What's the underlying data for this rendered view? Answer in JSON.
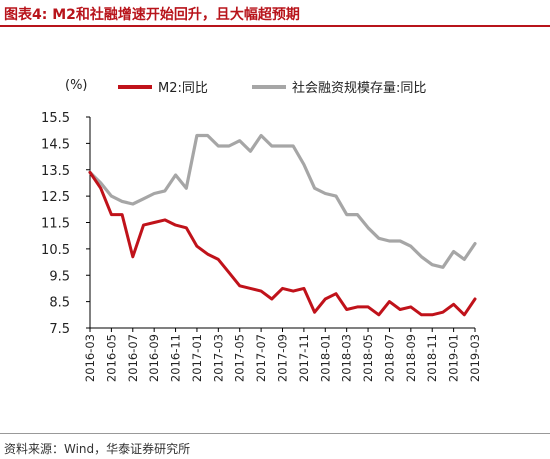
{
  "figure": {
    "title": "图表4:  M2和社融增速开始回升，且大幅超预期",
    "unit": "(%)",
    "source": "资料来源：Wind，华泰证券研究所"
  },
  "colors": {
    "accent": "#b8141b",
    "m2": "#c0121a",
    "tsf": "#a6a6a6",
    "axis": "#000000"
  },
  "chart_data": {
    "type": "line",
    "title": "",
    "xlabel": "",
    "ylabel": "(%)",
    "ylim": [
      7.5,
      15.5
    ],
    "yticks": [
      "15.5",
      "14.5",
      "13.5",
      "12.5",
      "11.5",
      "10.5",
      "9.5",
      "8.5",
      "7.5"
    ],
    "ytick_values": [
      15.5,
      14.5,
      13.5,
      12.5,
      11.5,
      10.5,
      9.5,
      8.5,
      7.5
    ],
    "xtick_labels": [
      "2016-03",
      "2016-05",
      "2016-07",
      "2016-09",
      "2016-11",
      "2017-01",
      "2017-03",
      "2017-05",
      "2017-07",
      "2017-09",
      "2017-11",
      "2018-01",
      "2018-03",
      "2018-05",
      "2018-07",
      "2018-09",
      "2018-11",
      "2019-01",
      "2019-03"
    ],
    "categories": [
      "2016-03",
      "2016-04",
      "2016-05",
      "2016-06",
      "2016-07",
      "2016-08",
      "2016-09",
      "2016-10",
      "2016-11",
      "2016-12",
      "2017-01",
      "2017-02",
      "2017-03",
      "2017-04",
      "2017-05",
      "2017-06",
      "2017-07",
      "2017-08",
      "2017-09",
      "2017-10",
      "2017-11",
      "2017-12",
      "2018-01",
      "2018-02",
      "2018-03",
      "2018-04",
      "2018-05",
      "2018-06",
      "2018-07",
      "2018-08",
      "2018-09",
      "2018-10",
      "2018-11",
      "2018-12",
      "2019-01",
      "2019-02",
      "2019-03"
    ],
    "grid": false,
    "legend_position": "top",
    "series": [
      {
        "name": "M2:同比",
        "values": [
          13.4,
          12.8,
          11.8,
          11.8,
          10.2,
          11.4,
          11.5,
          11.6,
          11.4,
          11.3,
          10.6,
          10.3,
          10.1,
          9.6,
          9.1,
          9.0,
          8.9,
          8.6,
          9.0,
          8.9,
          9.0,
          8.1,
          8.6,
          8.8,
          8.2,
          8.3,
          8.3,
          8.0,
          8.5,
          8.2,
          8.3,
          8.0,
          8.0,
          8.1,
          8.4,
          8.0,
          8.6
        ]
      },
      {
        "name": "社会融资规模存量:同比",
        "values": [
          13.4,
          13.0,
          12.5,
          12.3,
          12.2,
          12.4,
          12.6,
          12.7,
          13.3,
          12.8,
          14.8,
          14.8,
          14.4,
          14.4,
          14.6,
          14.2,
          14.8,
          14.4,
          14.4,
          14.4,
          13.7,
          12.8,
          12.6,
          12.5,
          11.8,
          11.8,
          11.3,
          10.9,
          10.8,
          10.8,
          10.6,
          10.2,
          9.9,
          9.8,
          10.4,
          10.1,
          10.7
        ]
      }
    ]
  }
}
